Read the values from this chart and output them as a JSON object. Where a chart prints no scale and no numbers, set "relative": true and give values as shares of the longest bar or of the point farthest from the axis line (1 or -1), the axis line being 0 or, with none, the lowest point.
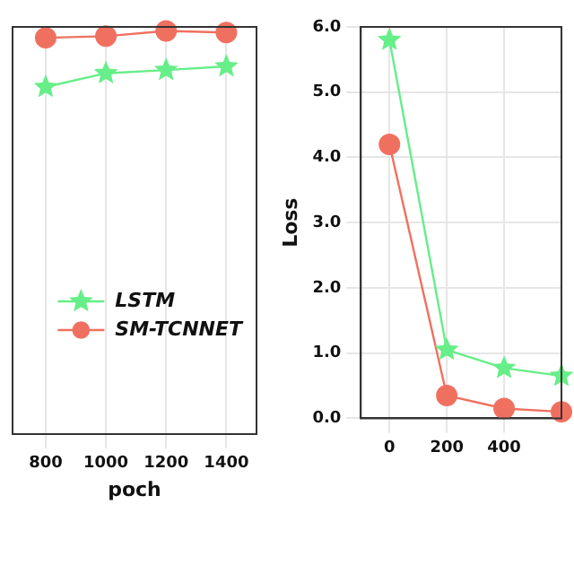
{
  "chart_data": [
    {
      "type": "line",
      "relative": true,
      "xlabel": "poch",
      "x": [
        800,
        1000,
        1200,
        1400
      ],
      "xlim": [
        690,
        1500
      ],
      "xticks": [
        800,
        1000,
        1200,
        1400
      ],
      "grid": "x",
      "legend": "bottom right",
      "series": [
        {
          "name": "LSTM",
          "color": "#66ee88",
          "marker": "star",
          "values": [
            0.861,
            0.895,
            0.903,
            0.912
          ]
        },
        {
          "name": "SM-TCNNET",
          "color": "#f07060",
          "marker": "circle",
          "values": [
            0.983,
            0.987,
            1,
            0.996
          ]
        }
      ]
    },
    {
      "type": "line",
      "ylabel": "Loss",
      "x": [
        0,
        200,
        400,
        600
      ],
      "xlim": [
        -100,
        600
      ],
      "xticks": [
        0,
        200,
        400
      ],
      "ylim": [
        0,
        6
      ],
      "yticks": [
        {
          "value": 0,
          "label": "0.0"
        },
        {
          "value": 1,
          "label": "1.0"
        },
        {
          "value": 2,
          "label": "2.0"
        },
        {
          "value": 3,
          "label": "3.0"
        },
        {
          "value": 4,
          "label": "4.0"
        },
        {
          "value": 5,
          "label": "5.0"
        },
        {
          "value": 6,
          "label": "6.0"
        }
      ],
      "grid": true,
      "series": [
        {
          "color": "#66ee88",
          "marker": "star",
          "values": [
            5.8,
            1.05,
            0.77,
            0.65
          ]
        },
        {
          "color": "#f07060",
          "marker": "circle",
          "values": [
            4.2,
            0.35,
            0.15,
            0.1
          ]
        }
      ]
    }
  ]
}
